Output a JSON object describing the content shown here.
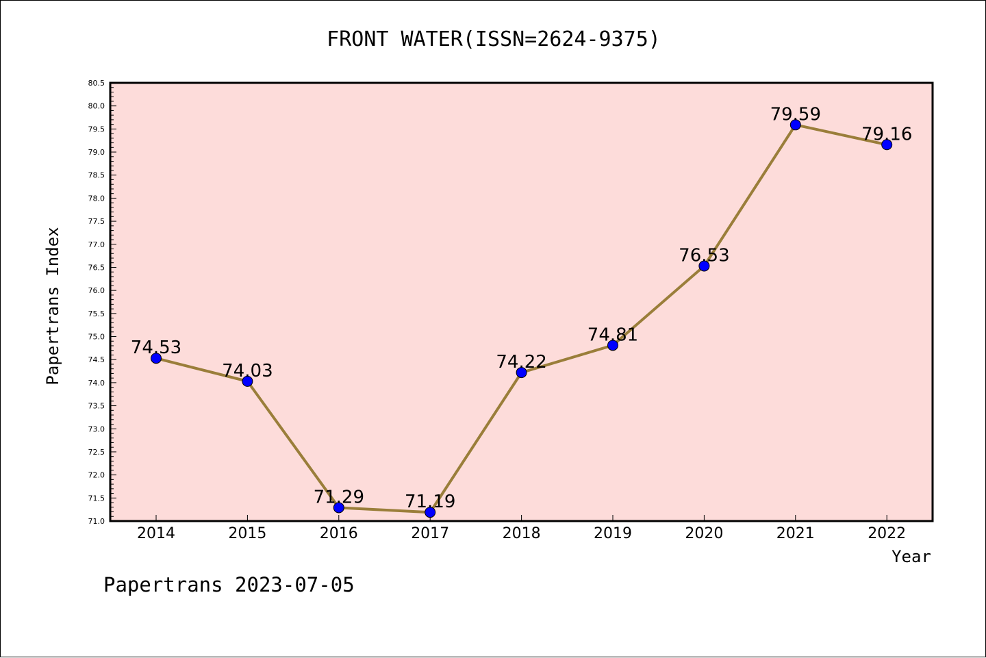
{
  "chart_data": {
    "type": "line",
    "title": "FRONT WATER(ISSN=2624-9375)",
    "xlabel": "Year",
    "ylabel": "Papertrans Index",
    "categories": [
      "2014",
      "2015",
      "2016",
      "2017",
      "2018",
      "2019",
      "2020",
      "2021",
      "2022"
    ],
    "values": [
      74.53,
      74.03,
      71.29,
      71.19,
      74.22,
      74.81,
      76.53,
      79.59,
      79.16
    ],
    "data_labels": [
      "74.53",
      "74.03",
      "71.29",
      "71.19",
      "74.22",
      "74.81",
      "76.53",
      "79.59",
      "79.16"
    ],
    "ylim": [
      71.0,
      80.5
    ],
    "ytick_labels": [
      "71.0",
      "71.5",
      "72.0",
      "72.5",
      "73.0",
      "73.5",
      "74.0",
      "74.5",
      "75.0",
      "75.5",
      "76.0",
      "76.5",
      "77.0",
      "77.5",
      "78.0",
      "78.5",
      "79.0",
      "79.5",
      "80.0",
      "80.5"
    ],
    "grid": false,
    "legend": "none",
    "colors": {
      "plot_background": "#FDDCDA",
      "line": "#9A7E3A",
      "marker": "#0000FF"
    }
  },
  "footer": {
    "text": "Papertrans 2023-07-05"
  }
}
